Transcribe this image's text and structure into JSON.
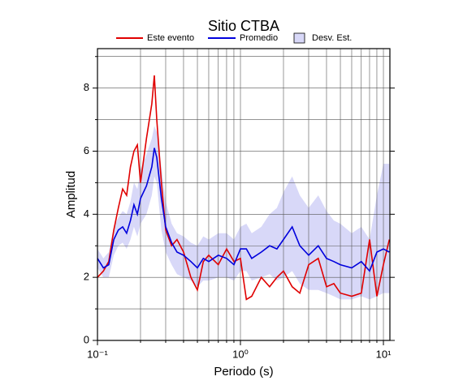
{
  "chart_data": {
    "type": "line",
    "title": "Sitio CTBA",
    "x_label": "Periodo (s)",
    "y_label": "Amplitud",
    "log_x": true,
    "grid": true,
    "legend": "top",
    "xlim": [
      0.1,
      11.1
    ],
    "ylim": [
      0,
      9.25
    ],
    "xticks": [
      {
        "value": 0.1,
        "label": "10⁻¹"
      },
      {
        "value": 1,
        "label": "10⁰"
      },
      {
        "value": 10,
        "label": "10¹"
      }
    ],
    "xminor": [
      0.2,
      0.3,
      0.4,
      0.5,
      0.6,
      0.7,
      0.8,
      0.9,
      2,
      3,
      4,
      5,
      6,
      7,
      8,
      9
    ],
    "yticks": [
      0,
      2,
      4,
      6,
      8
    ],
    "yminor": [
      1,
      3,
      5,
      7,
      9
    ],
    "x": [
      0.1,
      0.11,
      0.12,
      0.13,
      0.14,
      0.15,
      0.16,
      0.17,
      0.18,
      0.19,
      0.2,
      0.22,
      0.24,
      0.25,
      0.26,
      0.28,
      0.3,
      0.33,
      0.36,
      0.4,
      0.45,
      0.5,
      0.55,
      0.6,
      0.7,
      0.8,
      0.9,
      1.0,
      1.1,
      1.2,
      1.4,
      1.6,
      1.8,
      2.0,
      2.3,
      2.6,
      3.0,
      3.5,
      4,
      4.5,
      5,
      6,
      7,
      8,
      9,
      10,
      11
    ],
    "band": {
      "name": "Desv. Est.",
      "color": "#d8d8f8",
      "upper": [
        2.9,
        2.6,
        2.8,
        3.6,
        3.9,
        4.1,
        4.0,
        4.4,
        5.0,
        4.8,
        5.4,
        5.9,
        6.4,
        6.8,
        6.6,
        5.5,
        4.4,
        3.7,
        3.4,
        3.3,
        3.1,
        3.0,
        3.3,
        3.2,
        3.4,
        3.4,
        3.2,
        3.6,
        3.7,
        3.4,
        3.6,
        4.0,
        4.2,
        4.7,
        5.2,
        4.6,
        4.2,
        4.6,
        4.1,
        3.8,
        3.7,
        3.4,
        3.6,
        3.2,
        4.6,
        5.6,
        5.6
      ],
      "lower": [
        2.3,
        2.0,
        2.0,
        2.7,
        3.0,
        3.1,
        2.9,
        3.2,
        3.6,
        3.3,
        3.7,
        4.0,
        4.6,
        5.2,
        5.0,
        3.5,
        2.8,
        2.4,
        2.1,
        2.0,
        1.9,
        1.7,
        1.9,
        1.9,
        2.0,
        2.0,
        1.9,
        2.2,
        2.2,
        1.9,
        2.0,
        2.1,
        1.9,
        2.0,
        2.2,
        1.8,
        1.6,
        1.6,
        1.5,
        1.4,
        1.3,
        1.3,
        1.4,
        1.3,
        1.4,
        1.5,
        1.5
      ]
    },
    "series": [
      {
        "name": "Este evento",
        "color": "#e00000",
        "values": [
          2.0,
          2.2,
          2.5,
          3.5,
          4.2,
          4.8,
          4.6,
          5.5,
          6.0,
          6.2,
          5.0,
          6.4,
          7.5,
          8.4,
          7.0,
          5.0,
          3.5,
          3.0,
          3.2,
          2.8,
          2.0,
          1.6,
          2.5,
          2.7,
          2.4,
          2.9,
          2.5,
          2.6,
          1.3,
          1.4,
          2.0,
          1.7,
          2.0,
          2.2,
          1.7,
          1.5,
          2.4,
          2.6,
          1.7,
          1.8,
          1.5,
          1.4,
          1.5,
          3.2,
          1.4,
          2.4,
          3.2
        ]
      },
      {
        "name": "Promedio",
        "color": "#0000dd",
        "values": [
          2.6,
          2.3,
          2.4,
          3.2,
          3.5,
          3.6,
          3.4,
          3.8,
          4.3,
          4.0,
          4.5,
          4.9,
          5.5,
          6.1,
          5.8,
          4.5,
          3.6,
          3.1,
          2.8,
          2.7,
          2.5,
          2.3,
          2.6,
          2.5,
          2.7,
          2.6,
          2.4,
          2.9,
          2.9,
          2.6,
          2.8,
          3.0,
          2.9,
          3.2,
          3.6,
          3.0,
          2.7,
          3.0,
          2.6,
          2.5,
          2.4,
          2.3,
          2.5,
          2.2,
          2.8,
          2.9,
          2.8
        ]
      }
    ]
  }
}
